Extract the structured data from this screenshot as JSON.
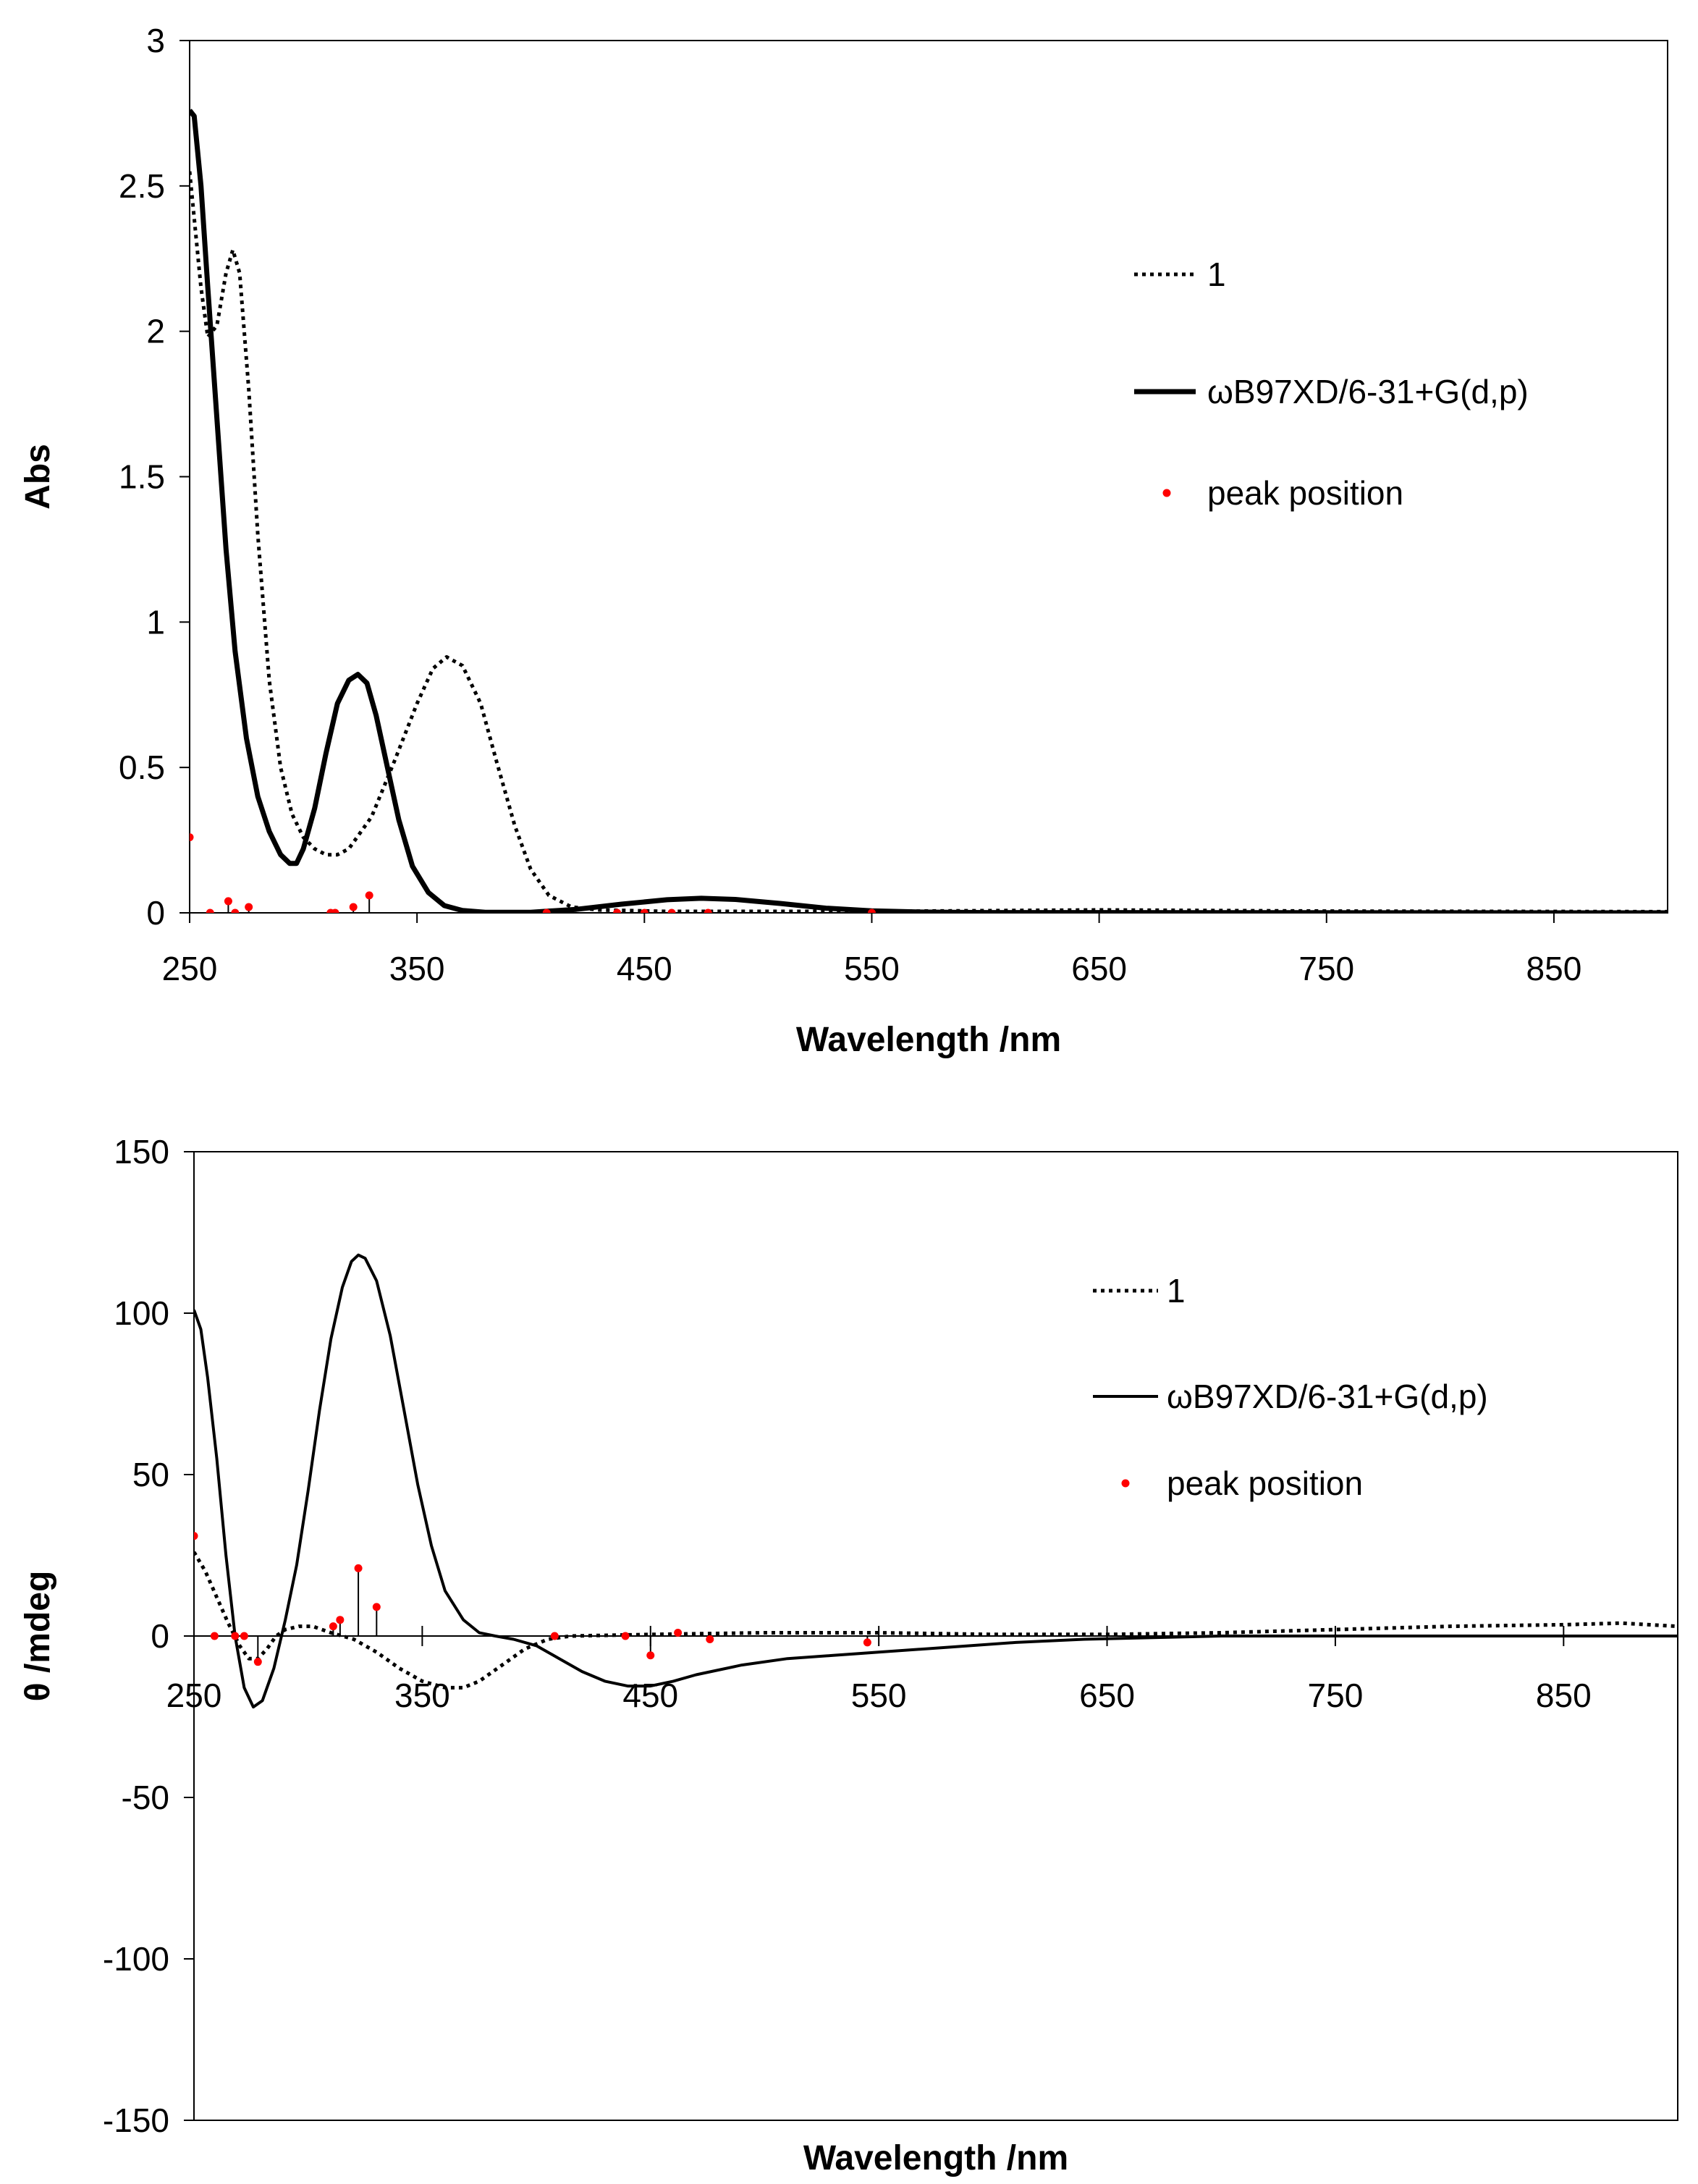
{
  "chart_data": [
    {
      "type": "line",
      "id": "uv",
      "xlabel": "Wavelength /nm",
      "ylabel": "Abs",
      "xlim": [
        250,
        900
      ],
      "ylim": [
        0,
        3
      ],
      "x_ticks": [
        250,
        350,
        450,
        550,
        650,
        750,
        850
      ],
      "y_ticks": [
        0,
        0.5,
        1,
        1.5,
        2,
        2.5,
        3
      ],
      "y_tick_labels": [
        "0",
        "0.5",
        "1",
        "1.5",
        "2",
        "2.5",
        "3"
      ],
      "legend": {
        "placement": "right",
        "entries": [
          {
            "label": "1",
            "style": "dotted"
          },
          {
            "label": "ωB97XD/6-31+G(d,p)",
            "style": "solid"
          },
          {
            "label": "peak position",
            "style": "marker"
          }
        ]
      },
      "series": [
        {
          "name": "1",
          "style": "dotted",
          "points": [
            [
              250,
              2.55
            ],
            [
              255,
              2.15
            ],
            [
              258,
              1.98
            ],
            [
              262,
              2.02
            ],
            [
              266,
              2.2
            ],
            [
              269,
              2.28
            ],
            [
              272,
              2.2
            ],
            [
              276,
              1.8
            ],
            [
              280,
              1.3
            ],
            [
              285,
              0.8
            ],
            [
              290,
              0.5
            ],
            [
              295,
              0.34
            ],
            [
              300,
              0.26
            ],
            [
              305,
              0.22
            ],
            [
              310,
              0.2
            ],
            [
              315,
              0.2
            ],
            [
              320,
              0.22
            ],
            [
              330,
              0.33
            ],
            [
              340,
              0.52
            ],
            [
              350,
              0.72
            ],
            [
              357,
              0.84
            ],
            [
              363,
              0.88
            ],
            [
              370,
              0.85
            ],
            [
              378,
              0.72
            ],
            [
              385,
              0.52
            ],
            [
              393,
              0.3
            ],
            [
              400,
              0.15
            ],
            [
              408,
              0.06
            ],
            [
              418,
              0.02
            ],
            [
              430,
              0.01
            ],
            [
              460,
              0.005
            ],
            [
              550,
              0.005
            ],
            [
              650,
              0.01
            ],
            [
              750,
              0.006
            ],
            [
              900,
              0.004
            ]
          ]
        },
        {
          "name": "ωB97XD/6-31+G(d,p)",
          "style": "solid",
          "points": [
            [
              250,
              2.76
            ],
            [
              252,
              2.74
            ],
            [
              255,
              2.5
            ],
            [
              258,
              2.15
            ],
            [
              262,
              1.7
            ],
            [
              266,
              1.25
            ],
            [
              270,
              0.9
            ],
            [
              275,
              0.6
            ],
            [
              280,
              0.4
            ],
            [
              285,
              0.28
            ],
            [
              290,
              0.2
            ],
            [
              294,
              0.17
            ],
            [
              297,
              0.17
            ],
            [
              300,
              0.22
            ],
            [
              305,
              0.36
            ],
            [
              310,
              0.55
            ],
            [
              315,
              0.72
            ],
            [
              320,
              0.8
            ],
            [
              324,
              0.82
            ],
            [
              328,
              0.79
            ],
            [
              332,
              0.68
            ],
            [
              337,
              0.5
            ],
            [
              342,
              0.32
            ],
            [
              348,
              0.16
            ],
            [
              355,
              0.07
            ],
            [
              362,
              0.025
            ],
            [
              370,
              0.008
            ],
            [
              380,
              0.002
            ],
            [
              400,
              0.002
            ],
            [
              420,
              0.012
            ],
            [
              440,
              0.03
            ],
            [
              460,
              0.045
            ],
            [
              475,
              0.05
            ],
            [
              490,
              0.046
            ],
            [
              510,
              0.032
            ],
            [
              530,
              0.016
            ],
            [
              550,
              0.007
            ],
            [
              570,
              0.003
            ],
            [
              600,
              0.001
            ],
            [
              900,
              0
            ]
          ]
        },
        {
          "name": "peak position",
          "style": "marker",
          "sticks": true,
          "points": [
            [
              250,
              0.26
            ],
            [
              259,
              0.0
            ],
            [
              267,
              0.04
            ],
            [
              270,
              0.0
            ],
            [
              276,
              0.02
            ],
            [
              312,
              0.0
            ],
            [
              314,
              0.0
            ],
            [
              322,
              0.02
            ],
            [
              329,
              0.06
            ],
            [
              407,
              0.0
            ],
            [
              438,
              0.0
            ],
            [
              450,
              0.0
            ],
            [
              462,
              0.0
            ],
            [
              478,
              0.0
            ],
            [
              550,
              0.0
            ]
          ]
        }
      ]
    },
    {
      "type": "line",
      "id": "ecd",
      "xlabel": "Wavelength /nm",
      "ylabel": "θ /mdeg",
      "xlim": [
        250,
        900
      ],
      "ylim": [
        -150,
        150
      ],
      "x_ticks": [
        250,
        350,
        450,
        550,
        650,
        750,
        850
      ],
      "y_ticks": [
        -150,
        -100,
        -50,
        0,
        50,
        100,
        150
      ],
      "y_tick_labels": [
        "-150",
        "-100",
        "-50",
        "0",
        "50",
        "100",
        "150"
      ],
      "legend": {
        "placement": "right",
        "entries": [
          {
            "label": "1",
            "style": "dotted"
          },
          {
            "label": "ωB97XD/6-31+G(d,p)",
            "style": "solid"
          },
          {
            "label": "peak position",
            "style": "marker"
          }
        ]
      },
      "series": [
        {
          "name": "1",
          "style": "dotted",
          "points": [
            [
              250,
              26
            ],
            [
              255,
              20
            ],
            [
              260,
              12
            ],
            [
              265,
              4
            ],
            [
              270,
              -3
            ],
            [
              274,
              -7
            ],
            [
              278,
              -7
            ],
            [
              282,
              -4
            ],
            [
              286,
              0
            ],
            [
              290,
              2
            ],
            [
              296,
              3
            ],
            [
              302,
              3
            ],
            [
              310,
              1
            ],
            [
              320,
              -1
            ],
            [
              330,
              -5
            ],
            [
              340,
              -10
            ],
            [
              350,
              -14
            ],
            [
              360,
              -16
            ],
            [
              368,
              -16
            ],
            [
              375,
              -14
            ],
            [
              385,
              -9
            ],
            [
              395,
              -4
            ],
            [
              405,
              -1
            ],
            [
              415,
              0
            ],
            [
              450,
              0.5
            ],
            [
              500,
              1
            ],
            [
              550,
              1
            ],
            [
              600,
              0.5
            ],
            [
              650,
              0.5
            ],
            [
              700,
              1
            ],
            [
              750,
              2
            ],
            [
              800,
              3
            ],
            [
              850,
              3.5
            ],
            [
              875,
              4
            ],
            [
              900,
              3
            ]
          ]
        },
        {
          "name": "ωB97XD/6-31+G(d,p)",
          "style": "solid",
          "points": [
            [
              250,
              101
            ],
            [
              253,
              95
            ],
            [
              256,
              80
            ],
            [
              260,
              55
            ],
            [
              264,
              25
            ],
            [
              268,
              0
            ],
            [
              272,
              -16
            ],
            [
              276,
              -22
            ],
            [
              280,
              -20
            ],
            [
              285,
              -10
            ],
            [
              290,
              5
            ],
            [
              295,
              22
            ],
            [
              300,
              45
            ],
            [
              305,
              70
            ],
            [
              310,
              92
            ],
            [
              315,
              108
            ],
            [
              319,
              116
            ],
            [
              322,
              118
            ],
            [
              325,
              117
            ],
            [
              330,
              110
            ],
            [
              336,
              93
            ],
            [
              342,
              70
            ],
            [
              348,
              47
            ],
            [
              354,
              28
            ],
            [
              360,
              14
            ],
            [
              368,
              5
            ],
            [
              375,
              1
            ],
            [
              382,
              0
            ],
            [
              390,
              -1
            ],
            [
              400,
              -3
            ],
            [
              410,
              -7
            ],
            [
              420,
              -11
            ],
            [
              430,
              -14
            ],
            [
              440,
              -15.5
            ],
            [
              450,
              -15.5
            ],
            [
              460,
              -14
            ],
            [
              470,
              -12
            ],
            [
              490,
              -9
            ],
            [
              510,
              -7
            ],
            [
              530,
              -6
            ],
            [
              550,
              -5
            ],
            [
              580,
              -3.5
            ],
            [
              610,
              -2
            ],
            [
              640,
              -1
            ],
            [
              670,
              -0.5
            ],
            [
              700,
              0
            ],
            [
              900,
              0
            ]
          ]
        },
        {
          "name": "peak position",
          "style": "marker",
          "sticks": true,
          "points": [
            [
              250,
              31
            ],
            [
              259,
              0
            ],
            [
              268,
              0
            ],
            [
              272,
              0
            ],
            [
              278,
              -8
            ],
            [
              311,
              3
            ],
            [
              314,
              5
            ],
            [
              322,
              21
            ],
            [
              330,
              9
            ],
            [
              408,
              0
            ],
            [
              439,
              0
            ],
            [
              450,
              -6
            ],
            [
              462,
              1
            ],
            [
              476,
              -1
            ],
            [
              545,
              -2
            ]
          ]
        }
      ]
    }
  ]
}
